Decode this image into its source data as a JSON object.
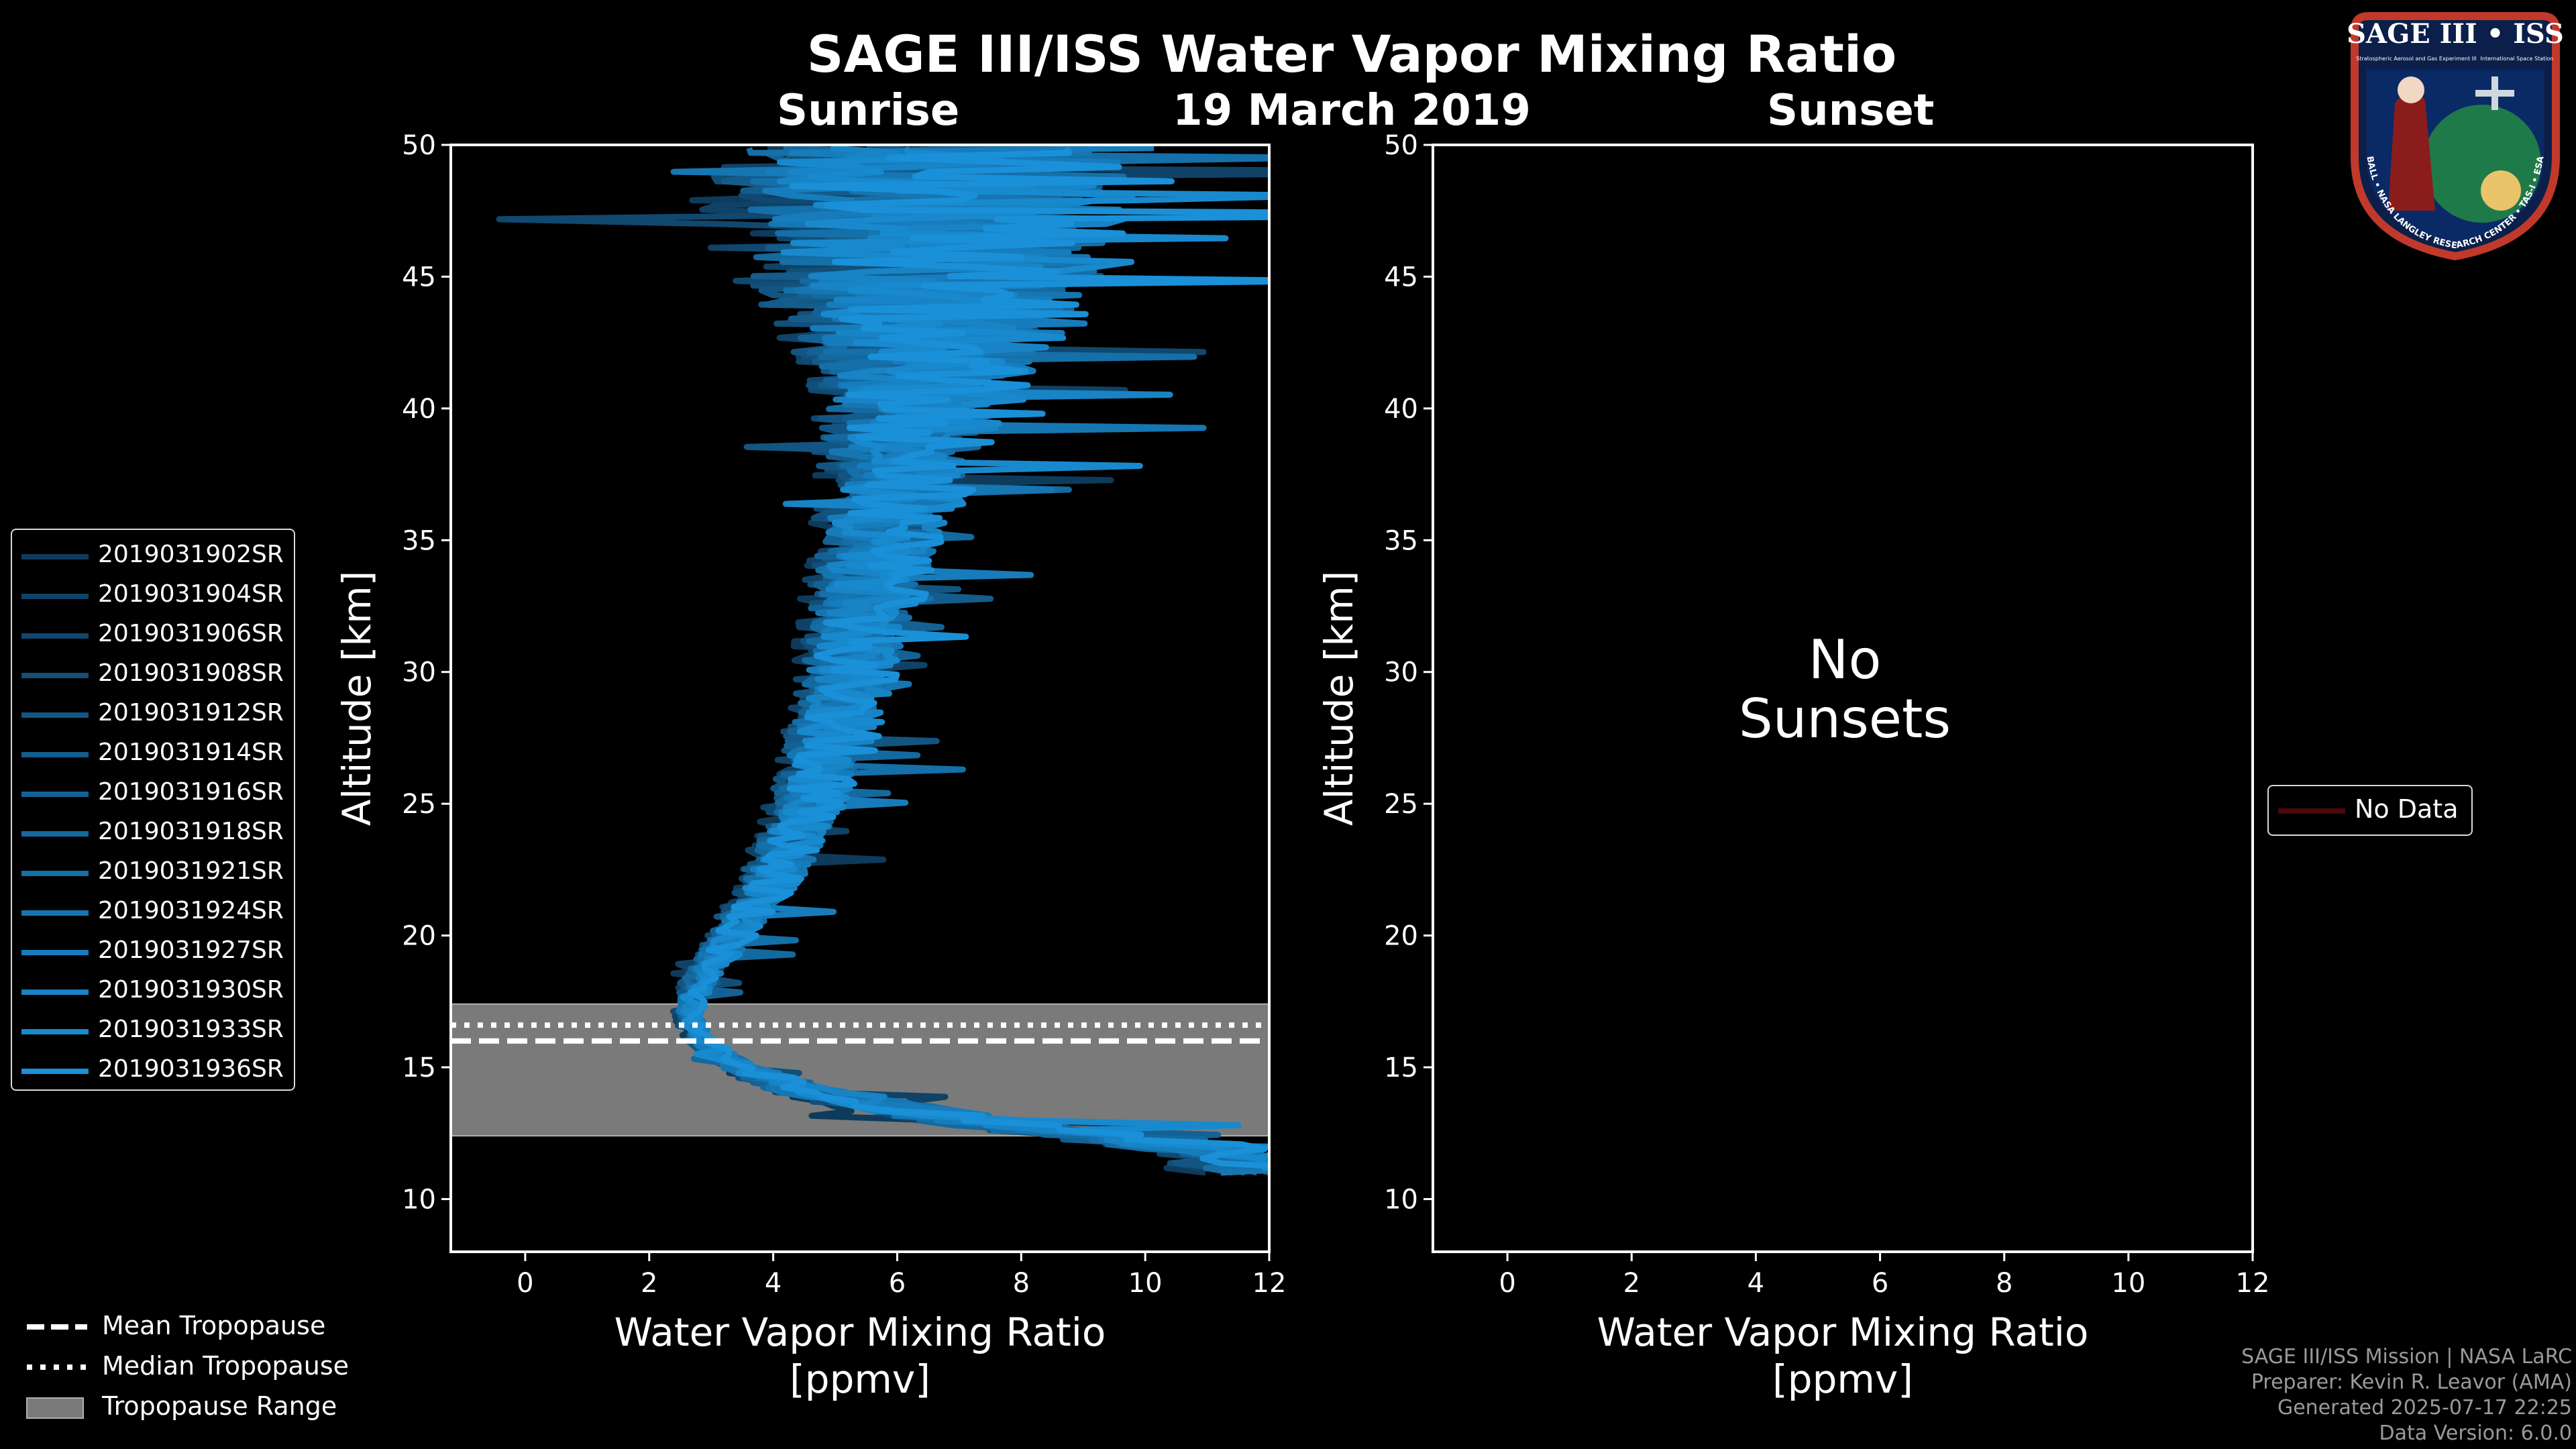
{
  "title": "SAGE III/ISS Water Vapor Mixing Ratio",
  "date": "19 March 2019",
  "panel_titles": {
    "left": "Sunrise",
    "right": "Sunset"
  },
  "no_data_message": {
    "line1": "No",
    "line2": "Sunsets"
  },
  "colors": {
    "background": "#000000",
    "axes": "#ffffff",
    "profile_dark": "#0e3b5c",
    "profile_light": "#1a90d8",
    "tropopause_fill": "#7a7a7a",
    "nodata_line": "#4a0a0a",
    "footer_text": "#9a9a9a"
  },
  "left_legend": {
    "entries": [
      "2019031902SR",
      "2019031904SR",
      "2019031906SR",
      "2019031908SR",
      "2019031912SR",
      "2019031914SR",
      "2019031916SR",
      "2019031918SR",
      "2019031921SR",
      "2019031924SR",
      "2019031927SR",
      "2019031930SR",
      "2019031933SR",
      "2019031936SR"
    ]
  },
  "bottom_legend": {
    "mean": "Mean Tropopause",
    "median": "Median Tropopause",
    "range": "Tropopause Range"
  },
  "right_legend": {
    "label": "No Data"
  },
  "footer": {
    "line1": "SAGE III/ISS Mission | NASA LaRC",
    "line2": "Preparer: Kevin R. Leavor (AMA)",
    "line3": "Generated 2025-07-17 22:25",
    "line4": "Data Version: 6.0.0"
  },
  "logo": {
    "title": "SAGE III • ISS",
    "left_caption": "Stratospheric Aerosol and Gas Experiment III",
    "right_caption": "International Space Station",
    "ring_text": "BALL • NASA LANGLEY RESEARCH CENTER • TAS-I • ESA"
  },
  "chart_data": [
    {
      "type": "line",
      "panel": "Sunrise",
      "title": "Sunrise",
      "xlabel": "Water Vapor Mixing Ratio [ppmv]",
      "xlabel_lines": [
        "Water Vapor Mixing Ratio",
        "[ppmv]"
      ],
      "ylabel": "Altitude [km]",
      "xlim": [
        -1.2,
        12
      ],
      "ylim": [
        8,
        50
      ],
      "xticks": [
        0,
        2,
        4,
        6,
        8,
        10,
        12
      ],
      "yticks": [
        10,
        15,
        20,
        25,
        30,
        35,
        40,
        45,
        50
      ],
      "tropopause": {
        "mean": 16.0,
        "median": 16.6,
        "range": [
          12.4,
          17.4
        ]
      },
      "base_profile": {
        "altitude": [
          11.0,
          12.0,
          13.0,
          14.0,
          15.0,
          16.0,
          17.0,
          18.0,
          19.0,
          20.0,
          21.0,
          22.0,
          23.0,
          24.0,
          25.0,
          26.0,
          27.0,
          28.0,
          29.0,
          30.0,
          31.0,
          32.0,
          33.0,
          34.0,
          35.0,
          36.0,
          37.0,
          38.0,
          39.0,
          40.0,
          41.0,
          42.0,
          43.0,
          44.0,
          45.0,
          46.0,
          47.0,
          48.0,
          49.0,
          50.0
        ],
        "mixing_ratio": [
          12.0,
          10.5,
          7.0,
          4.6,
          3.4,
          2.8,
          2.6,
          2.7,
          3.0,
          3.3,
          3.6,
          3.9,
          4.1,
          4.3,
          4.5,
          4.6,
          4.8,
          4.9,
          5.0,
          5.1,
          5.2,
          5.3,
          5.4,
          5.5,
          5.6,
          5.7,
          5.8,
          5.9,
          6.0,
          6.1,
          6.2,
          6.2,
          6.3,
          6.3,
          6.3,
          6.3,
          6.3,
          6.2,
          6.2,
          6.2
        ],
        "spread": [
          2.0,
          2.0,
          1.8,
          1.2,
          0.6,
          0.4,
          0.4,
          0.5,
          0.6,
          0.7,
          0.8,
          0.9,
          1.0,
          1.0,
          1.1,
          1.2,
          1.3,
          1.3,
          1.4,
          1.4,
          1.5,
          1.6,
          1.7,
          1.8,
          1.9,
          2.0,
          2.2,
          2.4,
          2.6,
          2.8,
          3.2,
          3.6,
          4.4,
          5.0,
          5.5,
          5.8,
          6.0,
          6.2,
          6.4,
          6.5
        ]
      },
      "series": [
        {
          "name": "2019031902SR"
        },
        {
          "name": "2019031904SR"
        },
        {
          "name": "2019031906SR"
        },
        {
          "name": "2019031908SR"
        },
        {
          "name": "2019031912SR"
        },
        {
          "name": "2019031914SR"
        },
        {
          "name": "2019031916SR"
        },
        {
          "name": "2019031918SR"
        },
        {
          "name": "2019031921SR"
        },
        {
          "name": "2019031924SR"
        },
        {
          "name": "2019031927SR"
        },
        {
          "name": "2019031930SR"
        },
        {
          "name": "2019031933SR"
        },
        {
          "name": "2019031936SR"
        }
      ]
    },
    {
      "type": "line",
      "panel": "Sunset",
      "title": "Sunset",
      "xlabel": "Water Vapor Mixing Ratio [ppmv]",
      "xlabel_lines": [
        "Water Vapor Mixing Ratio",
        "[ppmv]"
      ],
      "ylabel": "Altitude [km]",
      "xlim": [
        -1.2,
        12
      ],
      "ylim": [
        8,
        50
      ],
      "xticks": [
        0,
        2,
        4,
        6,
        8,
        10,
        12
      ],
      "yticks": [
        10,
        15,
        20,
        25,
        30,
        35,
        40,
        45,
        50
      ],
      "series": []
    }
  ]
}
